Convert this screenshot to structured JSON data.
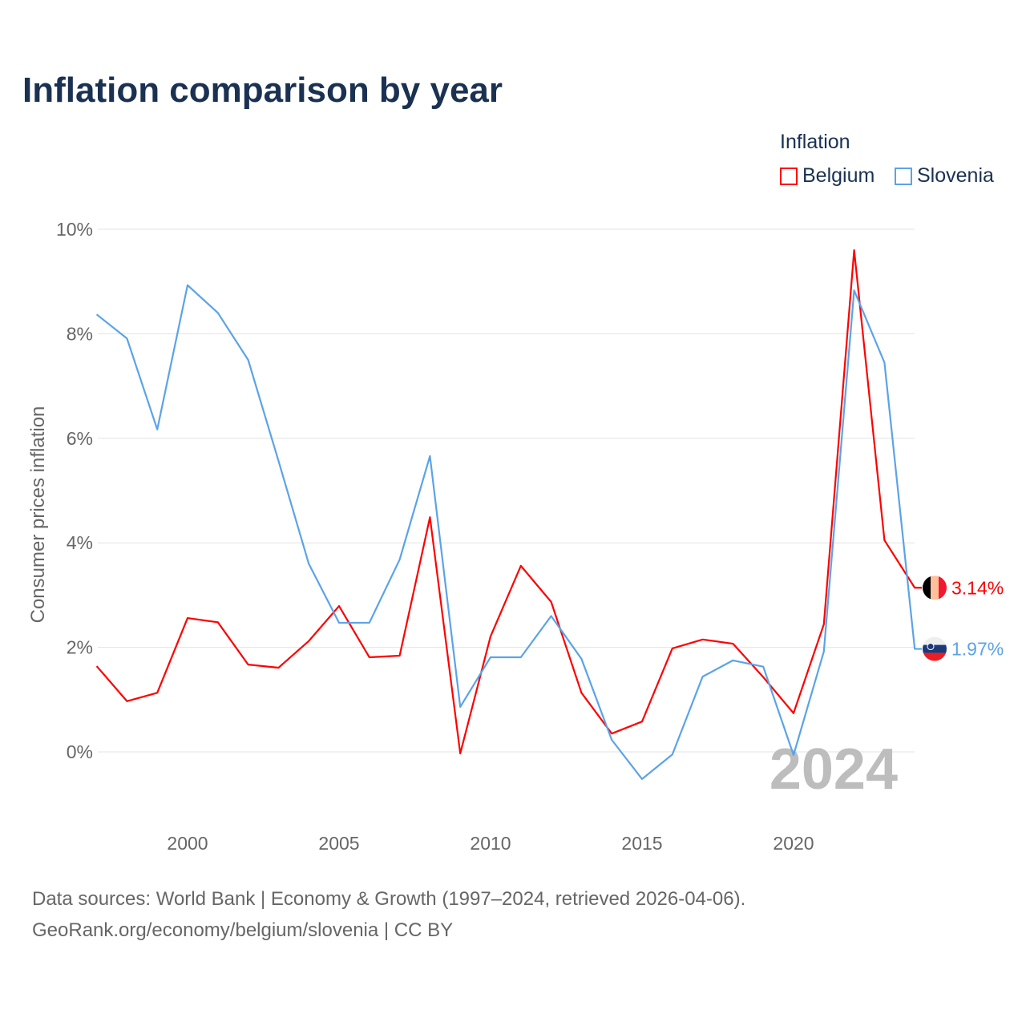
{
  "title": "Inflation comparison by year",
  "legend": {
    "title": "Inflation",
    "items": [
      {
        "label": "Belgium",
        "color": "#ff0000"
      },
      {
        "label": "Slovenia",
        "color": "#5ba3e8"
      }
    ]
  },
  "footer": {
    "line1": "Data sources: World Bank | Economy & Growth (1997–2024, retrieved 2026-04-06).",
    "line2": "GeoRank.org/economy/belgium/slovenia | CC BY"
  },
  "chart_data": {
    "type": "line",
    "title": "Inflation comparison by year",
    "xlabel": "",
    "ylabel": "Consumer prices inflation",
    "xlim": [
      1997,
      2024
    ],
    "ylim": [
      -1.5,
      10
    ],
    "x_ticks": [
      "2000",
      "2005",
      "2010",
      "2015",
      "2020"
    ],
    "y_ticks": [
      "0%",
      "2%",
      "4%",
      "6%",
      "8%",
      "10%"
    ],
    "grid": true,
    "legend_position": "top-right",
    "annotation": "2024",
    "x": [
      1997,
      1998,
      1999,
      2000,
      2001,
      2002,
      2003,
      2004,
      2005,
      2006,
      2007,
      2008,
      2009,
      2010,
      2011,
      2012,
      2013,
      2014,
      2015,
      2016,
      2017,
      2018,
      2019,
      2020,
      2021,
      2022,
      2023,
      2024
    ],
    "series": [
      {
        "name": "Belgium",
        "color": "#ff0000",
        "end_label": "3.14%",
        "values": [
          1.64,
          0.97,
          1.13,
          2.56,
          2.48,
          1.67,
          1.61,
          2.12,
          2.79,
          1.81,
          1.84,
          4.49,
          -0.03,
          2.21,
          3.56,
          2.87,
          1.13,
          0.35,
          0.58,
          1.98,
          2.15,
          2.07,
          1.43,
          0.74,
          2.44,
          9.6,
          4.05,
          3.14
        ]
      },
      {
        "name": "Slovenia",
        "color": "#5ba3e8",
        "end_label": "1.97%",
        "values": [
          8.37,
          7.91,
          6.17,
          8.93,
          8.4,
          7.5,
          5.57,
          3.6,
          2.47,
          2.47,
          3.68,
          5.66,
          0.86,
          1.81,
          1.81,
          2.6,
          1.78,
          0.23,
          -0.52,
          -0.05,
          1.44,
          1.75,
          1.63,
          -0.06,
          1.92,
          8.83,
          7.45,
          1.97
        ]
      }
    ]
  }
}
